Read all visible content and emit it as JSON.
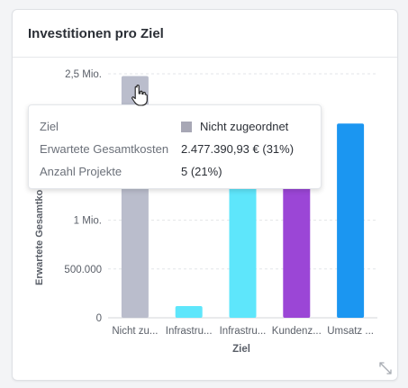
{
  "card": {
    "title": "Investitionen pro Ziel"
  },
  "tooltip": {
    "rows": [
      {
        "label": "Ziel",
        "value": "Nicht zugeordnet"
      },
      {
        "label": "Erwartete Gesamtkosten",
        "value": "2.477.390,93 € (31%)"
      },
      {
        "label": "Anzahl Projekte",
        "value": "5 (21%)"
      }
    ],
    "swatch_color": "#a7a7b5"
  },
  "icons": {
    "resize": "expand-diagonal-icon",
    "cursor": "hand-pointer-icon"
  },
  "chart_data": {
    "type": "bar",
    "xlabel": "Ziel",
    "ylabel": "Erwartete Gesamtkosten",
    "ylim": [
      0,
      2500000
    ],
    "yticks": [
      {
        "value": 0,
        "label": "0"
      },
      {
        "value": 500000,
        "label": "500.000"
      },
      {
        "value": 1000000,
        "label": "1 Mio."
      },
      {
        "value": 2500000,
        "label": "2,5 Mio."
      }
    ],
    "grid": true,
    "categories": [
      "Nicht zu...",
      "Infrastru...",
      "Infrastru...",
      "Kundenz...",
      "Umsatz ..."
    ],
    "values": [
      2477390.93,
      120000,
      1760000,
      2040000,
      1990000
    ],
    "colors": [
      "#babdcc",
      "#5ee6fb",
      "#5ee6fb",
      "#9b46d6",
      "#1b96f1"
    ]
  }
}
